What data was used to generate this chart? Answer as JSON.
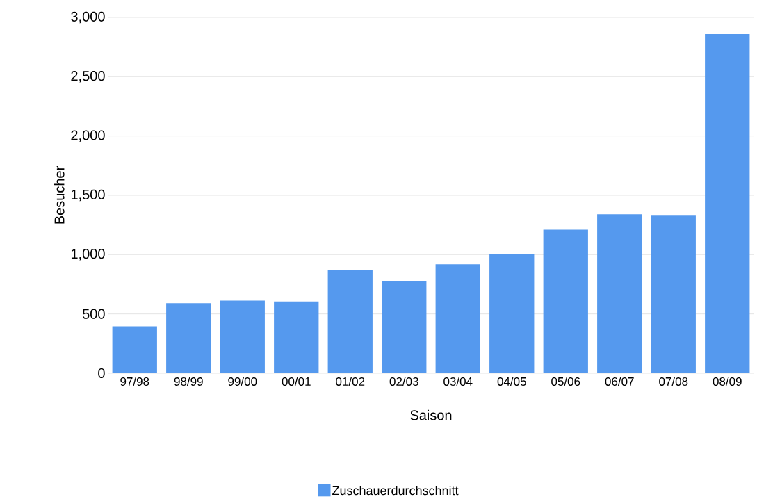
{
  "chart_data": {
    "type": "bar",
    "xlabel": "Saison",
    "ylabel": "Besucher",
    "categories": [
      "97/98",
      "98/99",
      "99/00",
      "00/01",
      "01/02",
      "02/03",
      "03/04",
      "04/05",
      "05/06",
      "06/07",
      "07/08",
      "08/09"
    ],
    "series": [
      {
        "name": "Zuschauerdurchschnitt",
        "color": "#5599ee",
        "values": [
          395,
          590,
          612,
          605,
          870,
          778,
          918,
          1005,
          1210,
          1340,
          1328,
          2860
        ]
      }
    ],
    "ylim": [
      0,
      3000
    ],
    "yticks": [
      {
        "value": 0,
        "label": "0"
      },
      {
        "value": 500,
        "label": "500"
      },
      {
        "value": 1000,
        "label": "1,000"
      },
      {
        "value": 1500,
        "label": "1,500"
      },
      {
        "value": 2000,
        "label": "2,000"
      },
      {
        "value": 2500,
        "label": "2,500"
      },
      {
        "value": 3000,
        "label": "3,000"
      }
    ],
    "grid": "y",
    "legend": "bottom"
  }
}
